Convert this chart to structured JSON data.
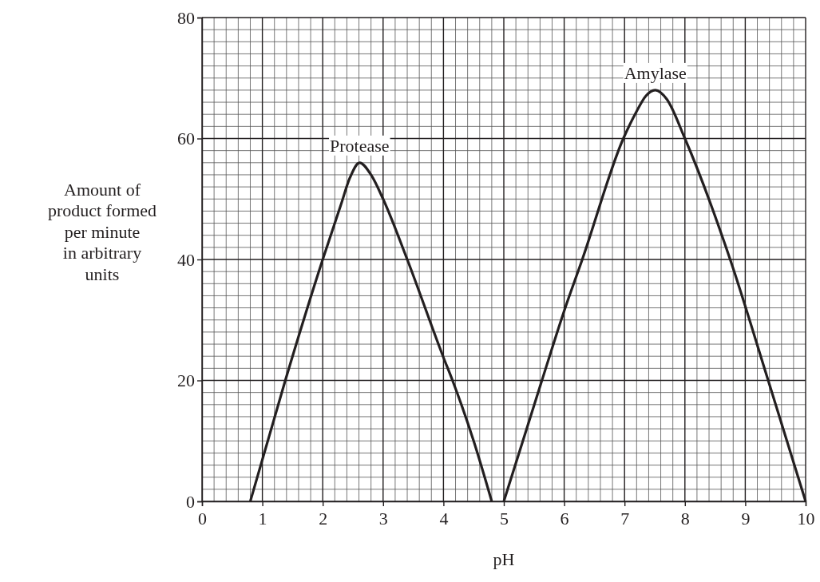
{
  "chart_data": {
    "type": "line",
    "xlabel": "pH",
    "ylabel": "Amount of\nproduct formed\nper minute\nin arbitrary\nunits",
    "xlim": [
      0,
      10
    ],
    "xticks": [
      0,
      1,
      2,
      3,
      4,
      5,
      6,
      7,
      8,
      9,
      10
    ],
    "ylim": [
      0,
      80
    ],
    "yticks": [
      0,
      20,
      40,
      60,
      80
    ],
    "grid": true,
    "line_style": "solid",
    "marker": "none",
    "series": [
      {
        "name": "Protease",
        "color": "#231f20",
        "x": [
          0.8,
          1.38,
          2.0,
          2.3,
          2.45,
          2.61,
          2.8,
          3.0,
          3.4,
          4.0,
          4.15,
          4.5,
          4.8
        ],
        "values": [
          0,
          20,
          40,
          49,
          53.5,
          56,
          54,
          50,
          40,
          23.8,
          20,
          10,
          0
        ]
      },
      {
        "name": "Amylase",
        "color": "#231f20",
        "x": [
          5.0,
          5.6,
          6.0,
          6.3,
          6.98,
          7.2,
          7.35,
          7.51,
          7.7,
          8.0,
          8.75,
          9.38,
          10.0
        ],
        "values": [
          0,
          19,
          31.5,
          40,
          60,
          64.5,
          67,
          68,
          66.5,
          60,
          40,
          20,
          0
        ]
      }
    ]
  }
}
